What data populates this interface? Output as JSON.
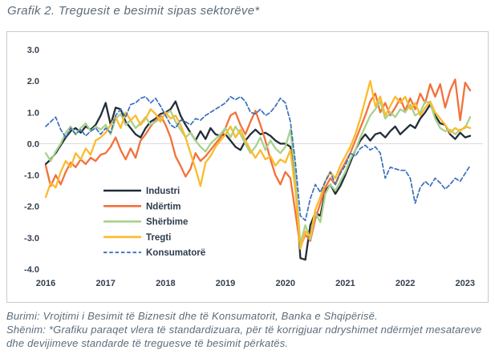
{
  "title": "Grafik 2. Treguesit e besimit sipas sektorëve*",
  "footer": {
    "source": "Burimi: Vrojtimi i Besimit të Biznesit dhe të Konsumatorit, Banka e Shqipërisë.",
    "note": "Shënim: *Grafiku paraqet vlera të standardizuara, për të korrigjuar ndryshimet ndërmjet mesatareve dhe devijimeve standarde të treguesve të besimit përkatës."
  },
  "palette": {
    "axis_text": "#333f4f",
    "legend_text": "#2d3c4e",
    "note_text": "#5c6c7a",
    "box_border": "#c8cbce",
    "zero_line": "#d9d9d9"
  },
  "chart_data": {
    "type": "line",
    "title": "Grafik 2. Treguesit e besimit sipas sektorëve*",
    "x_start": "2016-01",
    "x_frequency": "monthly",
    "x_tick_labels": [
      "2016",
      "2017",
      "2018",
      "2019",
      "2020",
      "2021",
      "2022",
      "2023"
    ],
    "x_tick_month_index": [
      0,
      12,
      24,
      36,
      48,
      60,
      72,
      84
    ],
    "ylim": [
      -4.0,
      3.0
    ],
    "y_ticks": [
      3.0,
      2.0,
      1.0,
      0.0,
      -1.0,
      -2.0,
      -3.0,
      -4.0
    ],
    "grid": "zero-line-only",
    "legend_position": "inside-lower-left",
    "series": [
      {
        "name": "Industri",
        "color": "#222d3a",
        "style": "solid",
        "values": [
          -0.65,
          -0.5,
          -0.3,
          -0.05,
          0.2,
          0.4,
          0.5,
          0.35,
          0.55,
          0.45,
          0.6,
          0.9,
          1.3,
          0.6,
          1.15,
          1.1,
          0.7,
          0.5,
          0.3,
          0.2,
          0.5,
          0.7,
          0.8,
          0.95,
          1.0,
          1.1,
          1.35,
          0.9,
          0.6,
          0.35,
          0.1,
          0.4,
          0.15,
          0.5,
          0.3,
          0.25,
          0.3,
          0.1,
          -0.1,
          -0.2,
          0.1,
          0.3,
          0.45,
          0.3,
          0.35,
          0.25,
          0.1,
          0.0,
          0.0,
          -0.1,
          -1.2,
          -3.65,
          -3.7,
          -2.6,
          -2.2,
          -2.3,
          -1.5,
          -1.3,
          -1.6,
          -1.35,
          -1.0,
          -0.6,
          -0.2,
          0.1,
          0.3,
          0.1,
          0.3,
          0.35,
          0.2,
          0.4,
          0.55,
          0.3,
          0.45,
          0.6,
          0.5,
          0.8,
          1.0,
          1.25,
          0.9,
          0.65,
          0.6,
          0.3,
          0.15,
          0.35,
          0.2,
          0.25
        ]
      },
      {
        "name": "Ndërtim",
        "color": "#f2713b",
        "style": "solid",
        "values": [
          -0.7,
          -1.35,
          -1.0,
          -1.3,
          -0.9,
          -0.6,
          -0.75,
          -0.5,
          -0.65,
          -0.45,
          -0.55,
          -0.35,
          -0.3,
          -0.1,
          0.2,
          -0.2,
          -0.5,
          -0.15,
          -0.45,
          0.1,
          0.3,
          0.55,
          0.75,
          0.9,
          0.6,
          0.2,
          -0.4,
          -0.7,
          -1.05,
          -0.8,
          -0.3,
          -0.55,
          -0.4,
          -0.2,
          0.0,
          0.2,
          0.5,
          0.9,
          1.0,
          0.6,
          0.3,
          0.7,
          1.05,
          0.6,
          0.1,
          -0.5,
          -1.0,
          -1.3,
          -0.9,
          -1.1,
          -2.2,
          -3.3,
          -2.9,
          -3.1,
          -2.4,
          -1.9,
          -1.4,
          -1.1,
          -1.3,
          -0.9,
          -0.6,
          -0.3,
          0.1,
          0.5,
          0.9,
          1.35,
          1.6,
          1.0,
          1.3,
          0.9,
          1.15,
          1.45,
          1.05,
          1.45,
          1.1,
          1.6,
          1.3,
          1.9,
          1.5,
          1.9,
          1.15,
          1.7,
          2.05,
          0.75,
          1.95,
          1.7
        ]
      },
      {
        "name": "Shërbime",
        "color": "#a7d28c",
        "style": "solid",
        "values": [
          -0.3,
          -0.55,
          -0.25,
          0.0,
          0.35,
          0.55,
          0.3,
          0.5,
          0.65,
          0.4,
          0.55,
          0.45,
          0.6,
          0.3,
          0.8,
          0.95,
          0.6,
          0.75,
          0.5,
          0.65,
          0.85,
          0.6,
          0.7,
          0.8,
          0.95,
          1.05,
          0.7,
          0.45,
          0.2,
          0.35,
          0.1,
          -0.1,
          -0.25,
          0.0,
          0.15,
          0.3,
          0.5,
          0.2,
          0.55,
          0.3,
          0.0,
          -0.3,
          -0.1,
          0.2,
          -0.2,
          0.1,
          -0.15,
          -0.3,
          -0.1,
          0.45,
          -1.0,
          -3.2,
          -2.6,
          -3.05,
          -2.2,
          -2.5,
          -1.6,
          -1.3,
          -1.5,
          -1.2,
          -0.9,
          -0.5,
          -0.2,
          0.2,
          0.55,
          0.9,
          1.1,
          1.35,
          0.8,
          1.0,
          0.85,
          1.1,
          1.0,
          1.25,
          0.9,
          1.0,
          1.35,
          1.3,
          0.8,
          0.5,
          0.4,
          0.45,
          0.3,
          0.45,
          0.5,
          0.85
        ]
      },
      {
        "name": "Tregti",
        "color": "#fcba2d",
        "style": "solid",
        "values": [
          -1.7,
          -1.25,
          -1.4,
          -0.9,
          -0.55,
          -0.75,
          -0.3,
          -0.5,
          -0.15,
          -0.35,
          0.1,
          0.2,
          0.35,
          0.6,
          0.85,
          0.5,
          1.0,
          0.75,
          0.9,
          0.6,
          0.8,
          1.1,
          0.95,
          0.7,
          1.0,
          0.8,
          0.9,
          0.6,
          0.2,
          -0.3,
          -0.8,
          -1.35,
          -0.6,
          -0.4,
          -0.1,
          0.1,
          0.3,
          0.55,
          0.2,
          0.45,
          0.1,
          -0.2,
          -0.45,
          -0.2,
          -0.5,
          -0.4,
          -0.7,
          -0.5,
          -0.6,
          -0.2,
          -1.5,
          -3.35,
          -2.8,
          -2.95,
          -2.1,
          -1.7,
          -1.2,
          -0.9,
          -1.1,
          -0.7,
          -0.4,
          -0.1,
          0.3,
          0.8,
          1.4,
          2.0,
          1.2,
          1.5,
          0.9,
          1.2,
          1.5,
          1.3,
          1.5,
          1.1,
          1.3,
          0.9,
          1.15,
          1.35,
          1.0,
          0.8,
          0.6,
          0.35,
          0.5,
          0.4,
          0.55,
          0.5
        ]
      },
      {
        "name": "Konsumatorë",
        "color": "#3a6fbd",
        "style": "dashed",
        "values": [
          0.55,
          0.7,
          0.85,
          0.45,
          0.2,
          0.5,
          0.3,
          0.45,
          0.25,
          0.4,
          0.5,
          0.3,
          0.5,
          0.35,
          0.9,
          1.1,
          0.85,
          1.25,
          1.3,
          1.45,
          1.5,
          1.3,
          1.45,
          1.2,
          0.9,
          0.6,
          0.5,
          0.75,
          0.7,
          0.6,
          0.8,
          0.75,
          0.9,
          1.0,
          1.1,
          1.2,
          1.3,
          1.5,
          1.4,
          1.5,
          1.35,
          1.0,
          0.95,
          1.1,
          0.9,
          1.0,
          1.2,
          1.45,
          1.3,
          0.7,
          -0.6,
          -2.3,
          -2.45,
          -1.75,
          -1.3,
          -1.55,
          -1.2,
          -0.9,
          -1.3,
          -0.95,
          -0.7,
          -0.3,
          -0.4,
          -0.15,
          -0.05,
          -0.2,
          -0.1,
          -0.3,
          -1.1,
          -0.75,
          -0.8,
          -0.85,
          -0.85,
          -1.1,
          -1.9,
          -1.4,
          -1.2,
          -1.35,
          -1.1,
          -1.25,
          -1.45,
          -1.3,
          -1.1,
          -1.2,
          -0.95,
          -0.7
        ]
      }
    ]
  }
}
